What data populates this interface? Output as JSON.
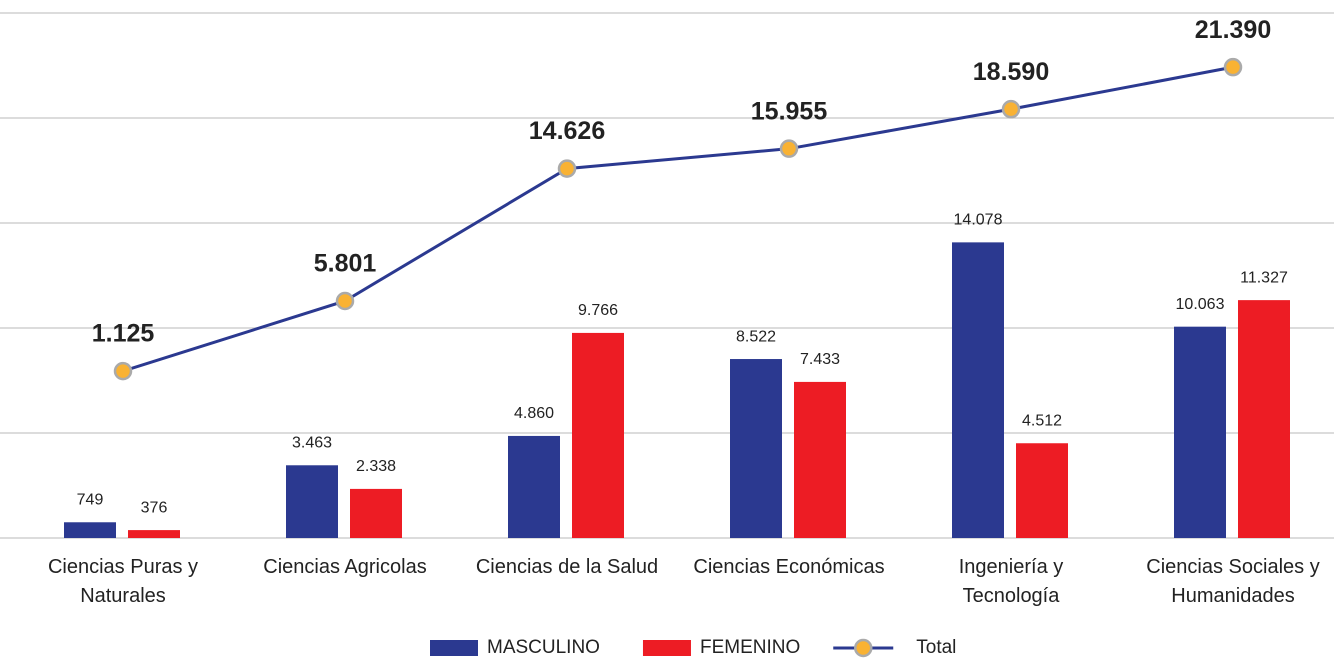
{
  "chart_data": {
    "type": "bar",
    "categories": [
      "Ciencias Puras y\nNaturales",
      "Ciencias Agricolas",
      "Ciencias de la Salud",
      "Ciencias Económicas",
      "Ingeniería y\nTecnología",
      "Ciencias Sociales y\nHumanidades"
    ],
    "series": [
      {
        "name": "MASCULINO",
        "color": "#2b3990",
        "values": [
          749,
          3463,
          4860,
          8522,
          14078,
          10063
        ],
        "value_labels": [
          "749",
          "3.463",
          "4.860",
          "8.522",
          "14.078",
          "10.063"
        ]
      },
      {
        "name": "FEMENINO",
        "color": "#ed1c24",
        "values": [
          376,
          2338,
          9766,
          7433,
          4512,
          11327
        ],
        "value_labels": [
          "376",
          "2.338",
          "9.766",
          "7.433",
          "4.512",
          "11.327"
        ]
      },
      {
        "name": "Total",
        "type": "line",
        "axis": "y2",
        "color": "#2b3990",
        "marker_color": "#f9b233",
        "values": [
          1125,
          5801,
          14626,
          15955,
          18590,
          21390
        ],
        "value_labels": [
          "1.125",
          "5.801",
          "14.626",
          "15.955",
          "18.590",
          "21.390"
        ]
      }
    ],
    "ylim": [
      0,
      25000
    ],
    "yticks": [
      0,
      5000,
      10000,
      15000,
      20000,
      25000
    ],
    "y2lim": [
      -10000,
      25000
    ],
    "grid": true,
    "legend": "bottom"
  }
}
